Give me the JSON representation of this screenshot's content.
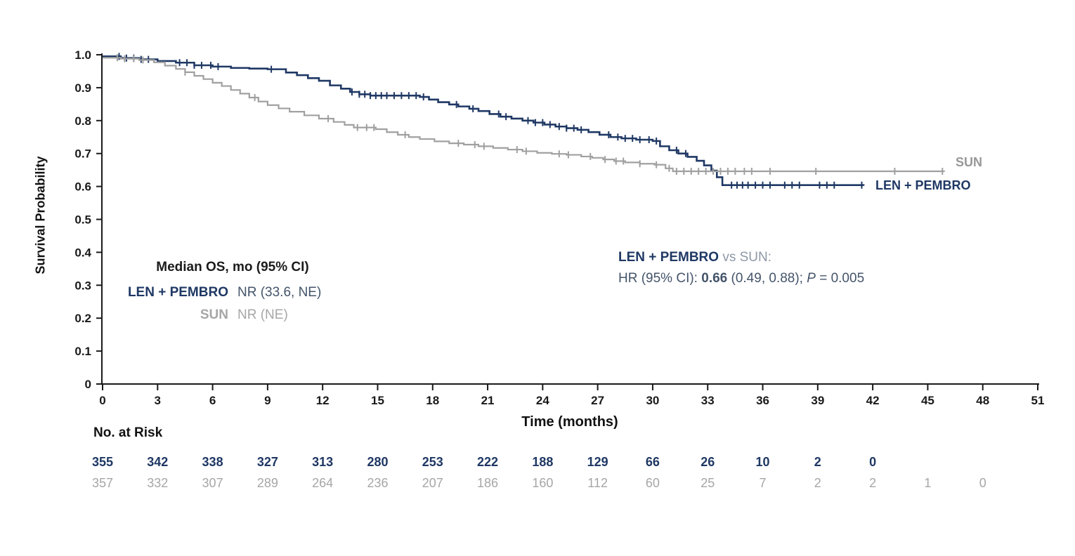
{
  "colors": {
    "len_pembro": "#1f3864",
    "sun": "#a0a0a0",
    "axis": "#1a1a1a",
    "annotation_slate": "#44546a",
    "text": "#111111"
  },
  "chart_data": {
    "type": "line",
    "subtype": "kaplan-meier-step-survival",
    "title": "",
    "xlabel": "Time (months)",
    "ylabel": "Survival Probability",
    "xlim": [
      0,
      51
    ],
    "ylim": [
      0,
      1.0
    ],
    "grid": false,
    "xticks": [
      0,
      3,
      6,
      9,
      12,
      15,
      18,
      21,
      24,
      27,
      30,
      33,
      36,
      39,
      42,
      45,
      48,
      51
    ],
    "yticks": [
      0,
      0.1,
      0.2,
      0.3,
      0.4,
      0.5,
      0.6,
      0.7,
      0.8,
      0.9,
      1.0
    ],
    "series": [
      {
        "name": "LEN + PEMBRO",
        "end_label": "LEN + PEMBRO",
        "color": "#1f3864",
        "stroke_width": 2.6,
        "points": [
          [
            0,
            0.995
          ],
          [
            1,
            0.99
          ],
          [
            2,
            0.986
          ],
          [
            3,
            0.981
          ],
          [
            4,
            0.976
          ],
          [
            5,
            0.968
          ],
          [
            6,
            0.964
          ],
          [
            7,
            0.96
          ],
          [
            8,
            0.958
          ],
          [
            9,
            0.956
          ],
          [
            10,
            0.946
          ],
          [
            10.6,
            0.938
          ],
          [
            11.2,
            0.929
          ],
          [
            11.8,
            0.921
          ],
          [
            12.4,
            0.907
          ],
          [
            13,
            0.897
          ],
          [
            13.5,
            0.887
          ],
          [
            14,
            0.88
          ],
          [
            14.6,
            0.876
          ],
          [
            17.3,
            0.872
          ],
          [
            17.8,
            0.864
          ],
          [
            18.3,
            0.856
          ],
          [
            18.9,
            0.849
          ],
          [
            19.4,
            0.843
          ],
          [
            20,
            0.836
          ],
          [
            20.5,
            0.829
          ],
          [
            21.1,
            0.82
          ],
          [
            21.7,
            0.812
          ],
          [
            22.3,
            0.806
          ],
          [
            22.9,
            0.8
          ],
          [
            23.5,
            0.794
          ],
          [
            24.1,
            0.788
          ],
          [
            24.7,
            0.782
          ],
          [
            25.3,
            0.777
          ],
          [
            25.9,
            0.772
          ],
          [
            26.5,
            0.765
          ],
          [
            27.1,
            0.757
          ],
          [
            27.7,
            0.75
          ],
          [
            28.3,
            0.746
          ],
          [
            29.1,
            0.742
          ],
          [
            30,
            0.738
          ],
          [
            30.4,
            0.722
          ],
          [
            30.9,
            0.71
          ],
          [
            31.4,
            0.7
          ],
          [
            31.9,
            0.69
          ],
          [
            32.4,
            0.678
          ],
          [
            32.8,
            0.664
          ],
          [
            33.2,
            0.648
          ],
          [
            33.5,
            0.628
          ],
          [
            33.8,
            0.604
          ],
          [
            41.5,
            0.602
          ]
        ],
        "censor_ticks": [
          0.9,
          1.3,
          1.7,
          2.1,
          2.5,
          4.2,
          4.6,
          5.0,
          5.4,
          5.9,
          6.3,
          9.2,
          13.6,
          14.0,
          14.3,
          14.6,
          14.9,
          15.2,
          15.5,
          15.9,
          16.3,
          16.7,
          17.1,
          17.5,
          19.3,
          20.2,
          21.6,
          22.0,
          23.2,
          23.6,
          24.0,
          24.4,
          24.9,
          25.3,
          25.7,
          26.1,
          27.6,
          28.1,
          28.5,
          28.9,
          29.3,
          29.8,
          30.2,
          31.3,
          31.8,
          34.3,
          34.6,
          34.9,
          35.2,
          35.6,
          36.0,
          36.4,
          37.2,
          37.6,
          38.0,
          39.1,
          39.5,
          39.9,
          41.4
        ]
      },
      {
        "name": "SUN",
        "end_label": "SUN",
        "color": "#a0a0a0",
        "stroke_width": 2.2,
        "points": [
          [
            0,
            0.991
          ],
          [
            1,
            0.988
          ],
          [
            2,
            0.984
          ],
          [
            2.8,
            0.977
          ],
          [
            3.4,
            0.967
          ],
          [
            4,
            0.957
          ],
          [
            4.5,
            0.947
          ],
          [
            5,
            0.936
          ],
          [
            5.5,
            0.926
          ],
          [
            6,
            0.915
          ],
          [
            6.5,
            0.905
          ],
          [
            7,
            0.893
          ],
          [
            7.5,
            0.882
          ],
          [
            8,
            0.87
          ],
          [
            8.5,
            0.858
          ],
          [
            9,
            0.847
          ],
          [
            9.6,
            0.837
          ],
          [
            10.2,
            0.827
          ],
          [
            11,
            0.816
          ],
          [
            11.8,
            0.806
          ],
          [
            12.6,
            0.796
          ],
          [
            13.2,
            0.787
          ],
          [
            13.7,
            0.779
          ],
          [
            14.9,
            0.774
          ],
          [
            15.5,
            0.765
          ],
          [
            16.1,
            0.757
          ],
          [
            16.7,
            0.75
          ],
          [
            17.3,
            0.744
          ],
          [
            18.1,
            0.737
          ],
          [
            18.9,
            0.731
          ],
          [
            19.7,
            0.727
          ],
          [
            20.5,
            0.722
          ],
          [
            21.3,
            0.717
          ],
          [
            22.1,
            0.712
          ],
          [
            22.9,
            0.707
          ],
          [
            23.7,
            0.702
          ],
          [
            24.5,
            0.699
          ],
          [
            25.3,
            0.696
          ],
          [
            26.1,
            0.691
          ],
          [
            26.7,
            0.687
          ],
          [
            27.3,
            0.682
          ],
          [
            27.9,
            0.677
          ],
          [
            28.5,
            0.673
          ],
          [
            29.3,
            0.669
          ],
          [
            30.1,
            0.666
          ],
          [
            30.7,
            0.655
          ],
          [
            31.1,
            0.646
          ],
          [
            45.9,
            0.645
          ]
        ],
        "censor_ticks": [
          0.8,
          1.2,
          1.7,
          2.2,
          4.5,
          8.3,
          12.3,
          13.9,
          14.4,
          14.8,
          16.5,
          19.4,
          20.3,
          20.8,
          22.6,
          23.1,
          24.9,
          25.4,
          26.6,
          27.4,
          28.0,
          28.4,
          29.3,
          30.2,
          30.9,
          31.3,
          31.7,
          32.1,
          32.5,
          32.9,
          33.3,
          33.7,
          34.1,
          34.5,
          35.0,
          35.4,
          36.4,
          38.9,
          43.2,
          45.8
        ]
      }
    ],
    "annotations": {
      "median_block": {
        "header": "Median OS, mo (95% CI)",
        "rows": [
          {
            "label": "LEN + PEMBRO",
            "value": "NR (33.6, NE)"
          },
          {
            "label": "SUN",
            "value": "NR (NE)"
          }
        ]
      },
      "hr_block": {
        "line1_bold": "LEN + PEMBRO",
        "line1_rest": " vs SUN:",
        "line2_prefix": "HR (95% CI): ",
        "line2_bold": "0.66",
        "line2_mid": " (0.49, 0.88); ",
        "line2_italic": "P",
        "line2_suffix": " = 0.005"
      }
    },
    "risk_table": {
      "title": "No. at Risk",
      "rows": [
        {
          "name": "LEN + PEMBRO",
          "color": "#1f3864",
          "values": [
            355,
            342,
            338,
            327,
            313,
            280,
            253,
            222,
            188,
            129,
            66,
            26,
            10,
            2,
            0
          ]
        },
        {
          "name": "SUN",
          "color": "#a6a6a6",
          "values": [
            357,
            332,
            307,
            289,
            264,
            236,
            207,
            186,
            160,
            112,
            60,
            25,
            7,
            2,
            2,
            1,
            0
          ]
        }
      ]
    }
  }
}
